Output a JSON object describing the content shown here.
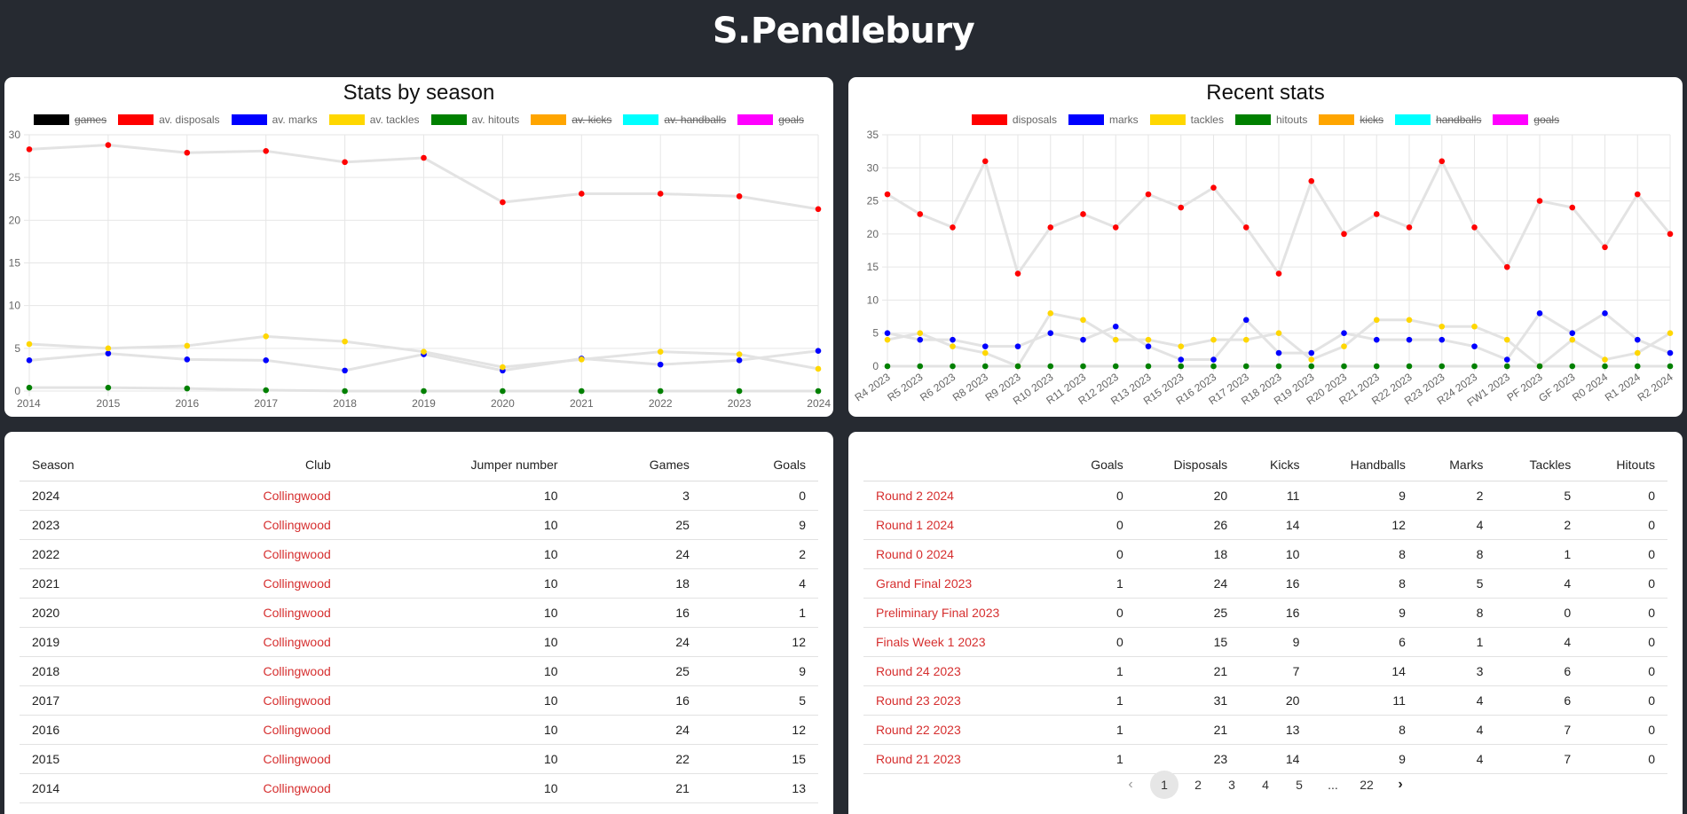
{
  "page": {
    "title": "S.Pendlebury"
  },
  "season_chart": {
    "title": "Stats by season",
    "legend": [
      {
        "label": "games",
        "color": "#000000",
        "hidden": true
      },
      {
        "label": "av. disposals",
        "color": "#ff0000",
        "hidden": false
      },
      {
        "label": "av. marks",
        "color": "#0000ff",
        "hidden": false
      },
      {
        "label": "av. tackles",
        "color": "#ffd700",
        "hidden": false
      },
      {
        "label": "av. hitouts",
        "color": "#008000",
        "hidden": false
      },
      {
        "label": "av. kicks",
        "color": "#ffa500",
        "hidden": true
      },
      {
        "label": "av. handballs",
        "color": "#00ffff",
        "hidden": true
      },
      {
        "label": "goals",
        "color": "#ff00ff",
        "hidden": true
      }
    ]
  },
  "recent_chart": {
    "title": "Recent stats",
    "legend": [
      {
        "label": "disposals",
        "color": "#ff0000",
        "hidden": false
      },
      {
        "label": "marks",
        "color": "#0000ff",
        "hidden": false
      },
      {
        "label": "tackles",
        "color": "#ffd700",
        "hidden": false
      },
      {
        "label": "hitouts",
        "color": "#008000",
        "hidden": false
      },
      {
        "label": "kicks",
        "color": "#ffa500",
        "hidden": true
      },
      {
        "label": "handballs",
        "color": "#00ffff",
        "hidden": true
      },
      {
        "label": "goals",
        "color": "#ff00ff",
        "hidden": true
      }
    ]
  },
  "chart_data": [
    {
      "type": "line",
      "title": "Stats by season",
      "x": [
        "2014",
        "2015",
        "2016",
        "2017",
        "2018",
        "2019",
        "2020",
        "2021",
        "2022",
        "2023",
        "2024"
      ],
      "ylim": [
        0,
        30
      ],
      "yticks": [
        0,
        5,
        10,
        15,
        20,
        25,
        30
      ],
      "grid": true,
      "legend": "top",
      "series": [
        {
          "name": "av. disposals",
          "color": "#ff0000",
          "values": [
            28.3,
            28.8,
            27.9,
            28.1,
            26.8,
            27.3,
            22.1,
            23.1,
            23.1,
            22.8,
            21.3
          ]
        },
        {
          "name": "av. marks",
          "color": "#0000ff",
          "values": [
            3.6,
            4.4,
            3.7,
            3.6,
            2.4,
            4.3,
            2.4,
            3.8,
            3.1,
            3.6,
            4.7
          ]
        },
        {
          "name": "av. tackles",
          "color": "#ffd700",
          "values": [
            5.5,
            5.0,
            5.3,
            6.4,
            5.8,
            4.6,
            2.8,
            3.7,
            4.6,
            4.3,
            2.6
          ]
        },
        {
          "name": "av. hitouts",
          "color": "#008000",
          "values": [
            0.4,
            0.4,
            0.3,
            0.1,
            0.0,
            0.0,
            0.0,
            0.0,
            0.0,
            0.0,
            0.0
          ]
        }
      ]
    },
    {
      "type": "line",
      "title": "Recent stats",
      "x": [
        "R4 2023",
        "R5 2023",
        "R6 2023",
        "R8 2023",
        "R9 2023",
        "R10 2023",
        "R11 2023",
        "R12 2023",
        "R13 2023",
        "R15 2023",
        "R16 2023",
        "R17 2023",
        "R18 2023",
        "R19 2023",
        "R20 2023",
        "R21 2023",
        "R22 2023",
        "R23 2023",
        "R24 2023",
        "FW1 2023",
        "PF 2023",
        "GF 2023",
        "R0 2024",
        "R1 2024",
        "R2 2024"
      ],
      "ylim": [
        0,
        35
      ],
      "yticks": [
        0,
        5,
        10,
        15,
        20,
        25,
        30,
        35
      ],
      "grid": true,
      "legend": "top",
      "series": [
        {
          "name": "disposals",
          "color": "#ff0000",
          "values": [
            26,
            23,
            21,
            31,
            14,
            21,
            23,
            21,
            26,
            24,
            27,
            21,
            14,
            28,
            20,
            23,
            21,
            31,
            21,
            15,
            25,
            24,
            18,
            26,
            20
          ]
        },
        {
          "name": "marks",
          "color": "#0000ff",
          "values": [
            5,
            4,
            4,
            3,
            3,
            5,
            4,
            6,
            3,
            1,
            1,
            7,
            2,
            2,
            5,
            4,
            4,
            4,
            3,
            1,
            8,
            5,
            8,
            4,
            2
          ]
        },
        {
          "name": "tackles",
          "color": "#ffd700",
          "values": [
            4,
            5,
            3,
            2,
            0,
            8,
            7,
            4,
            4,
            3,
            4,
            4,
            5,
            1,
            3,
            7,
            7,
            6,
            6,
            4,
            0,
            4,
            1,
            2,
            5
          ]
        },
        {
          "name": "hitouts",
          "color": "#008000",
          "values": [
            0,
            0,
            0,
            0,
            0,
            0,
            0,
            0,
            0,
            0,
            0,
            0,
            0,
            0,
            0,
            0,
            0,
            0,
            0,
            0,
            0,
            0,
            0,
            0,
            0
          ]
        }
      ]
    }
  ],
  "season_table": {
    "headers": [
      "Season",
      "Club",
      "Jumper number",
      "Games",
      "Goals"
    ],
    "rows": [
      [
        "2024",
        "Collingwood",
        "10",
        "3",
        "0"
      ],
      [
        "2023",
        "Collingwood",
        "10",
        "25",
        "9"
      ],
      [
        "2022",
        "Collingwood",
        "10",
        "24",
        "2"
      ],
      [
        "2021",
        "Collingwood",
        "10",
        "18",
        "4"
      ],
      [
        "2020",
        "Collingwood",
        "10",
        "16",
        "1"
      ],
      [
        "2019",
        "Collingwood",
        "10",
        "24",
        "12"
      ],
      [
        "2018",
        "Collingwood",
        "10",
        "25",
        "9"
      ],
      [
        "2017",
        "Collingwood",
        "10",
        "16",
        "5"
      ],
      [
        "2016",
        "Collingwood",
        "10",
        "24",
        "12"
      ],
      [
        "2015",
        "Collingwood",
        "10",
        "22",
        "15"
      ],
      [
        "2014",
        "Collingwood",
        "10",
        "21",
        "13"
      ]
    ]
  },
  "recent_table": {
    "headers": [
      "",
      "Goals",
      "Disposals",
      "Kicks",
      "Handballs",
      "Marks",
      "Tackles",
      "Hitouts"
    ],
    "rows": [
      [
        "Round 2 2024",
        "0",
        "20",
        "11",
        "9",
        "2",
        "5",
        "0"
      ],
      [
        "Round 1 2024",
        "0",
        "26",
        "14",
        "12",
        "4",
        "2",
        "0"
      ],
      [
        "Round 0 2024",
        "0",
        "18",
        "10",
        "8",
        "8",
        "1",
        "0"
      ],
      [
        "Grand Final 2023",
        "1",
        "24",
        "16",
        "8",
        "5",
        "4",
        "0"
      ],
      [
        "Preliminary Final 2023",
        "0",
        "25",
        "16",
        "9",
        "8",
        "0",
        "0"
      ],
      [
        "Finals Week 1 2023",
        "0",
        "15",
        "9",
        "6",
        "1",
        "4",
        "0"
      ],
      [
        "Round 24 2023",
        "1",
        "21",
        "7",
        "14",
        "3",
        "6",
        "0"
      ],
      [
        "Round 23 2023",
        "1",
        "31",
        "20",
        "11",
        "4",
        "6",
        "0"
      ],
      [
        "Round 22 2023",
        "1",
        "21",
        "13",
        "8",
        "4",
        "7",
        "0"
      ],
      [
        "Round 21 2023",
        "1",
        "23",
        "14",
        "9",
        "4",
        "7",
        "0"
      ]
    ]
  },
  "pagination": {
    "prev_icon": "chevron-left-icon",
    "next_icon": "chevron-right-icon",
    "pages": [
      "1",
      "2",
      "3",
      "4",
      "5",
      "...",
      "22"
    ],
    "active": "1"
  }
}
